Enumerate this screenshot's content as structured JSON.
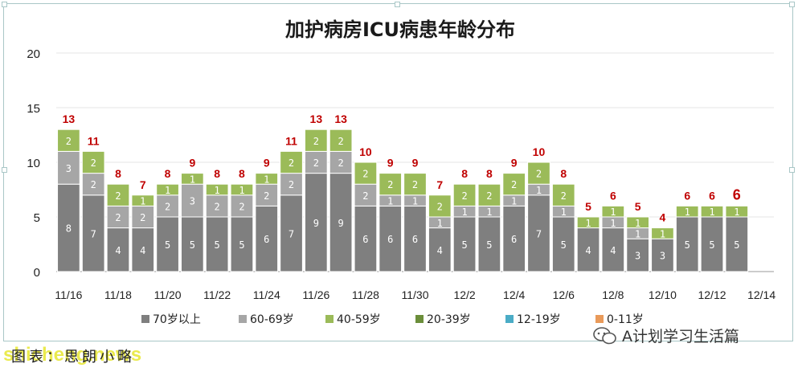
{
  "chart_data": {
    "type": "bar",
    "stacked": true,
    "title": "加护病房ICU病患年龄分布",
    "xlabel": "",
    "ylabel": "",
    "ylim": [
      0,
      20
    ],
    "yticks": [
      0,
      5,
      10,
      15,
      20
    ],
    "grid": true,
    "legend_position": "bottom",
    "categories": [
      "11/16",
      "11/17",
      "11/18",
      "11/19",
      "11/20",
      "11/21",
      "11/22",
      "11/23",
      "11/24",
      "11/25",
      "11/26",
      "11/27",
      "11/28",
      "11/29",
      "11/30",
      "12/1",
      "12/2",
      "12/3",
      "12/4",
      "12/5",
      "12/6",
      "12/7",
      "12/8",
      "12/9",
      "12/10",
      "12/11",
      "12/12",
      "12/13",
      "12/14"
    ],
    "tick_labels": [
      "11/16",
      "",
      "11/18",
      "",
      "11/20",
      "",
      "11/22",
      "",
      "11/24",
      "",
      "11/26",
      "",
      "11/28",
      "",
      "11/30",
      "",
      "12/2",
      "",
      "12/4",
      "",
      "12/6",
      "",
      "12/8",
      "",
      "12/10",
      "",
      "12/12",
      "",
      "12/14"
    ],
    "series": [
      {
        "name": "70岁以上",
        "color": "#7f7f7f",
        "values": [
          8,
          7,
          4,
          4,
          5,
          5,
          5,
          5,
          6,
          7,
          9,
          9,
          6,
          6,
          6,
          4,
          5,
          5,
          6,
          7,
          5,
          4,
          4,
          3,
          3,
          5,
          5,
          5,
          null
        ]
      },
      {
        "name": "60-69岁",
        "color": "#a6a6a6",
        "values": [
          3,
          2,
          2,
          2,
          2,
          3,
          2,
          2,
          2,
          2,
          2,
          2,
          2,
          1,
          1,
          1,
          1,
          1,
          1,
          1,
          1,
          0,
          1,
          1,
          0,
          0,
          0,
          0,
          null
        ]
      },
      {
        "name": "40-59岁",
        "color": "#9bbb59",
        "values": [
          2,
          2,
          2,
          1,
          1,
          1,
          1,
          1,
          1,
          2,
          2,
          2,
          2,
          2,
          2,
          2,
          2,
          2,
          2,
          2,
          2,
          1,
          1,
          1,
          1,
          1,
          1,
          1,
          null
        ]
      },
      {
        "name": "20-39岁",
        "color": "#6b8e3a",
        "values": [
          0,
          0,
          0,
          0,
          0,
          0,
          0,
          0,
          0,
          0,
          0,
          0,
          0,
          0,
          0,
          0,
          0,
          0,
          0,
          0,
          0,
          0,
          0,
          0,
          0,
          0,
          0,
          0,
          null
        ]
      },
      {
        "name": "12-19岁",
        "color": "#4bacc6",
        "values": [
          0,
          0,
          0,
          0,
          0,
          0,
          0,
          0,
          0,
          0,
          0,
          0,
          0,
          0,
          0,
          0,
          0,
          0,
          0,
          0,
          0,
          0,
          0,
          0,
          0,
          0,
          0,
          0,
          null
        ]
      },
      {
        "name": "0-11岁",
        "color": "#e99a5a",
        "values": [
          0,
          0,
          0,
          0,
          0,
          0,
          0,
          0,
          0,
          0,
          0,
          0,
          0,
          0,
          0,
          0,
          0,
          0,
          0,
          0,
          0,
          0,
          0,
          0,
          0,
          0,
          0,
          0,
          null
        ]
      }
    ],
    "totals": [
      13,
      11,
      8,
      7,
      8,
      9,
      8,
      8,
      9,
      11,
      13,
      13,
      10,
      9,
      9,
      7,
      8,
      8,
      9,
      10,
      8,
      5,
      6,
      5,
      4,
      6,
      6,
      6,
      null
    ],
    "total_label_color": "#c00000"
  },
  "caption": "图表：思朗小略",
  "site_watermark": "shicheng.news",
  "account_watermark": "A计划学习生活篇"
}
